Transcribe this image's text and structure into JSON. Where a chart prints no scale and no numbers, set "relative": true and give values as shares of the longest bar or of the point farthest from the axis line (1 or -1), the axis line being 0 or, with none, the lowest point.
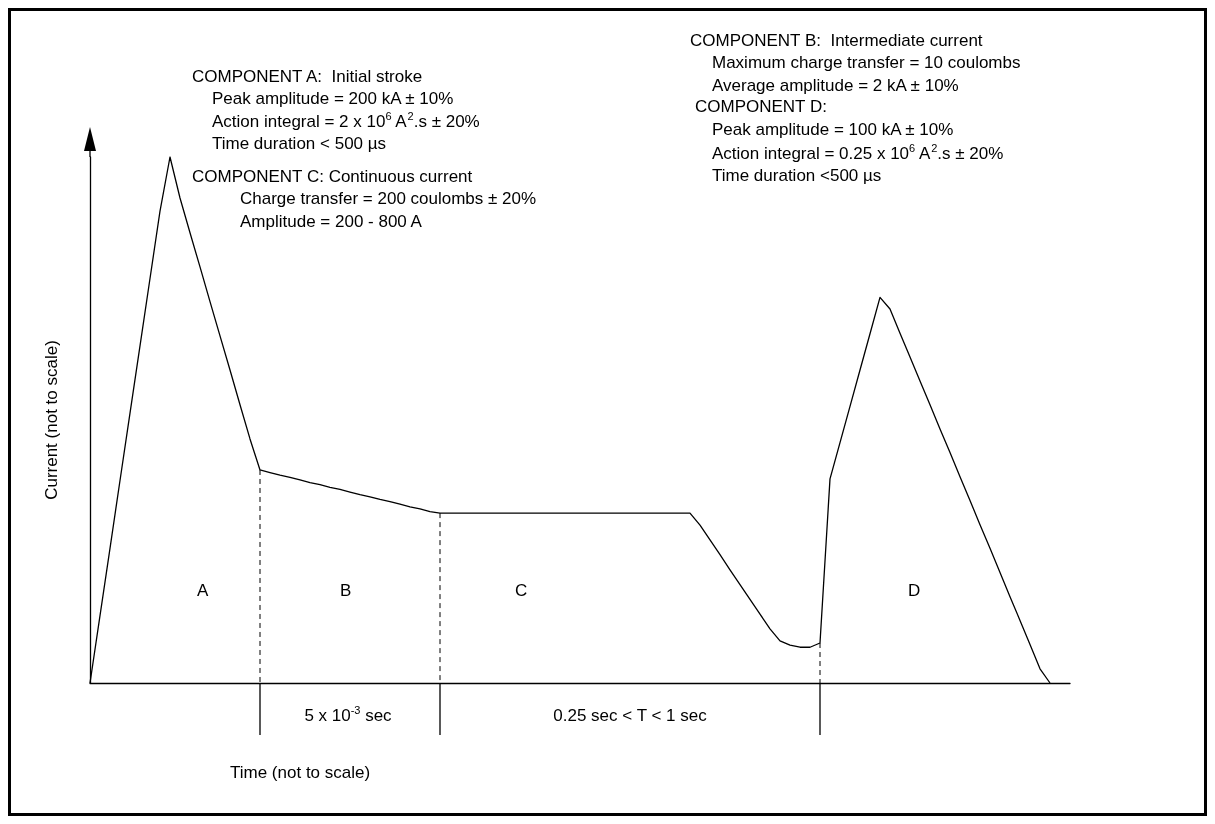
{
  "chart_data": {
    "type": "line",
    "relative": true,
    "xlabel": "Time (not to scale)",
    "ylabel": "Current (not to scale)",
    "categories": [
      null,
      null,
      null,
      null,
      null,
      null,
      null,
      null,
      null,
      null,
      null,
      null,
      null,
      null,
      null,
      null,
      null,
      null,
      null,
      null,
      null,
      null,
      null,
      null,
      null,
      null,
      null,
      null,
      null,
      null,
      null,
      null,
      null,
      null,
      null,
      null,
      null,
      null,
      null,
      null,
      null,
      null,
      null,
      null,
      null,
      null,
      null,
      null,
      null,
      null,
      null,
      null,
      null,
      null,
      null,
      null,
      null,
      null,
      null,
      null,
      null,
      null,
      null,
      null,
      null,
      null,
      null,
      null,
      null,
      null,
      null,
      null,
      null,
      null,
      null,
      null,
      null,
      null,
      null,
      null,
      null,
      null,
      null,
      null,
      null,
      null,
      null,
      null,
      null,
      null,
      null,
      null,
      null,
      null,
      null,
      null,
      null,
      null,
      null
    ],
    "series": [
      {
        "color": "#000000",
        "values": [
          0,
          0.128,
          0.256,
          0.385,
          0.513,
          0.641,
          0.769,
          0.897,
          1,
          0.922,
          0.856,
          0.791,
          0.725,
          0.66,
          0.595,
          0.529,
          0.464,
          0.405,
          0.4,
          0.395,
          0.391,
          0.386,
          0.381,
          0.377,
          0.372,
          0.368,
          0.363,
          0.358,
          0.354,
          0.349,
          0.345,
          0.34,
          0.335,
          0.331,
          0.326,
          0.323,
          0.323,
          0.323,
          0.323,
          0.323,
          0.323,
          0.323,
          0.323,
          0.323,
          0.323,
          0.323,
          0.323,
          0.323,
          0.323,
          0.323,
          0.323,
          0.323,
          0.323,
          0.323,
          0.323,
          0.323,
          0.323,
          0.323,
          0.323,
          0.323,
          0.323,
          0.3,
          0.272,
          0.244,
          0.215,
          0.187,
          0.159,
          0.131,
          0.103,
          0.08,
          0.072,
          0.068,
          0.068,
          0.076,
          0.388,
          0.457,
          0.526,
          0.595,
          0.664,
          0.733,
          0.711,
          0.665,
          0.62,
          0.574,
          0.529,
          0.483,
          0.438,
          0.392,
          0.347,
          0.301,
          0.256,
          0.21,
          0.164,
          0.119,
          0.073,
          0.027,
          0,
          null,
          null
        ]
      }
    ],
    "marker": "none",
    "line_style": "solid",
    "grid": false,
    "annotations": [
      "COMPONENT A:  Initial stroke",
      "Peak amplitude = 200 kA ± 10%",
      "Action integral = 2 x 10$^{6}$ A$^{2}$.s ± 20%",
      "Time duration < 500 µs",
      "COMPONENT C: Continuous current",
      "Charge transfer = 200 coulombs ± 20%",
      "Amplitude = 200 - 800 A",
      "COMPONENT B:  Intermediate current",
      "Maximum charge transfer = 10 coulombs",
      "Average amplitude = 2 kA ± 10%",
      "COMPONENT D:",
      "Peak amplitude = 100 kA ± 10%",
      "Action integral = 0.25 x 10$^{6}$ A$^{2}$.s ± 20%",
      "Time duration <500 µs",
      "A",
      "B",
      "C",
      "D",
      "5 x 10$^{-3}$ sec",
      "0.25 sec < T < 1 sec"
    ]
  }
}
